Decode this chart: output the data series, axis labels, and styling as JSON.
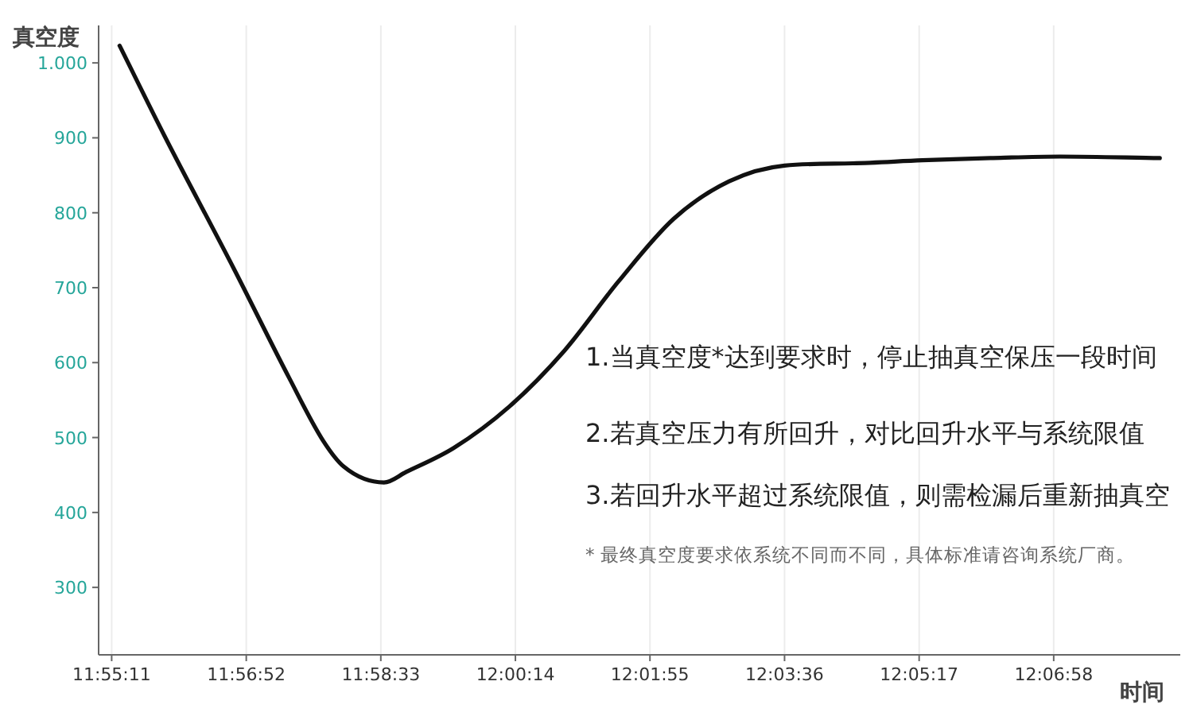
{
  "chart_data": {
    "type": "line",
    "xlabel": "时间",
    "ylabel": "真空度",
    "annotations": [
      "1.当真空度*达到要求时，停止抽真空保压一段时间",
      "2.若真空压力有所回升，对比回升水平与系统限值",
      "3.若回升水平超过系统限值，则需检漏后重新抽真空",
      "* 最终真空度要求依系统不同而不同，具体标准请咨询系统厂商。"
    ],
    "x": [
      11.92137,
      11.93078,
      11.94514,
      11.95669,
      11.96378,
      11.96814,
      11.97649,
      11.98111,
      11.99102,
      12.00257,
      12.01412,
      12.02534,
      12.0369,
      12.04845,
      12.06,
      12.07419,
      12.08872,
      12.10291,
      12.11743,
      12.13823
    ],
    "series": [
      {
        "color": "#111111",
        "values": [
          1023,
          902,
          726,
          580,
          496,
          461,
          440,
          454,
          486,
          541,
          616,
          708,
          792,
          842,
          863,
          866,
          870,
          873,
          875,
          873
        ]
      }
    ],
    "xlim": [
      11.917,
      12.1425
    ],
    "ylim": [
      210,
      1050
    ],
    "xticks": [
      {
        "value": 11.91972,
        "label": "11:55:11"
      },
      {
        "value": 11.94778,
        "label": "11:56:52"
      },
      {
        "value": 11.97583,
        "label": "11:58:33"
      },
      {
        "value": 12.00389,
        "label": "12:00:14"
      },
      {
        "value": 12.03194,
        "label": "12:01:55"
      },
      {
        "value": 12.06,
        "label": "12:03:36"
      },
      {
        "value": 12.08806,
        "label": "12:05:17"
      },
      {
        "value": 12.11611,
        "label": "12:06:58"
      }
    ],
    "yticks": [
      300,
      400,
      500,
      600,
      700,
      800,
      900,
      {
        "value": 1000,
        "label": "1.000"
      }
    ],
    "grid": "x"
  }
}
